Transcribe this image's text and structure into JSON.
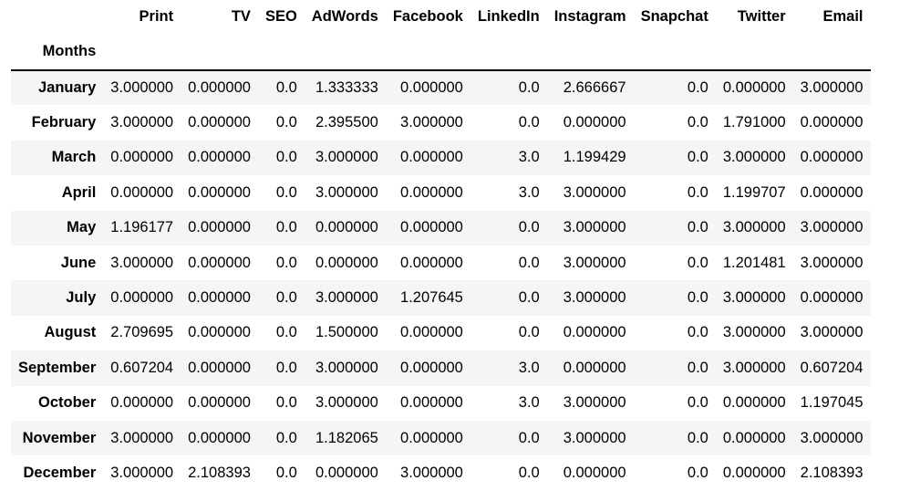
{
  "table": {
    "index_name": "Months",
    "columns": [
      "Print",
      "TV",
      "SEO",
      "AdWords",
      "Facebook",
      "LinkedIn",
      "Instagram",
      "Snapchat",
      "Twitter",
      "Email"
    ],
    "rows": [
      {
        "month": "January",
        "values": [
          "3.000000",
          "0.000000",
          "0.0",
          "1.333333",
          "0.000000",
          "0.0",
          "2.666667",
          "0.0",
          "0.000000",
          "3.000000"
        ]
      },
      {
        "month": "February",
        "values": [
          "3.000000",
          "0.000000",
          "0.0",
          "2.395500",
          "3.000000",
          "0.0",
          "0.000000",
          "0.0",
          "1.791000",
          "0.000000"
        ]
      },
      {
        "month": "March",
        "values": [
          "0.000000",
          "0.000000",
          "0.0",
          "3.000000",
          "0.000000",
          "3.0",
          "1.199429",
          "0.0",
          "3.000000",
          "0.000000"
        ]
      },
      {
        "month": "April",
        "values": [
          "0.000000",
          "0.000000",
          "0.0",
          "3.000000",
          "0.000000",
          "3.0",
          "3.000000",
          "0.0",
          "1.199707",
          "0.000000"
        ]
      },
      {
        "month": "May",
        "values": [
          "1.196177",
          "0.000000",
          "0.0",
          "0.000000",
          "0.000000",
          "0.0",
          "3.000000",
          "0.0",
          "3.000000",
          "3.000000"
        ]
      },
      {
        "month": "June",
        "values": [
          "3.000000",
          "0.000000",
          "0.0",
          "0.000000",
          "0.000000",
          "0.0",
          "3.000000",
          "0.0",
          "1.201481",
          "3.000000"
        ]
      },
      {
        "month": "July",
        "values": [
          "0.000000",
          "0.000000",
          "0.0",
          "3.000000",
          "1.207645",
          "0.0",
          "3.000000",
          "0.0",
          "3.000000",
          "0.000000"
        ]
      },
      {
        "month": "August",
        "values": [
          "2.709695",
          "0.000000",
          "0.0",
          "1.500000",
          "0.000000",
          "0.0",
          "0.000000",
          "0.0",
          "3.000000",
          "3.000000"
        ]
      },
      {
        "month": "September",
        "values": [
          "0.607204",
          "0.000000",
          "0.0",
          "3.000000",
          "0.000000",
          "3.0",
          "0.000000",
          "0.0",
          "3.000000",
          "0.607204"
        ]
      },
      {
        "month": "October",
        "values": [
          "0.000000",
          "0.000000",
          "0.0",
          "3.000000",
          "0.000000",
          "3.0",
          "3.000000",
          "0.0",
          "0.000000",
          "1.197045"
        ]
      },
      {
        "month": "November",
        "values": [
          "3.000000",
          "0.000000",
          "0.0",
          "1.182065",
          "0.000000",
          "0.0",
          "3.000000",
          "0.0",
          "0.000000",
          "3.000000"
        ]
      },
      {
        "month": "December",
        "values": [
          "3.000000",
          "2.108393",
          "0.0",
          "0.000000",
          "3.000000",
          "0.0",
          "0.000000",
          "0.0",
          "0.000000",
          "2.108393"
        ]
      }
    ]
  }
}
